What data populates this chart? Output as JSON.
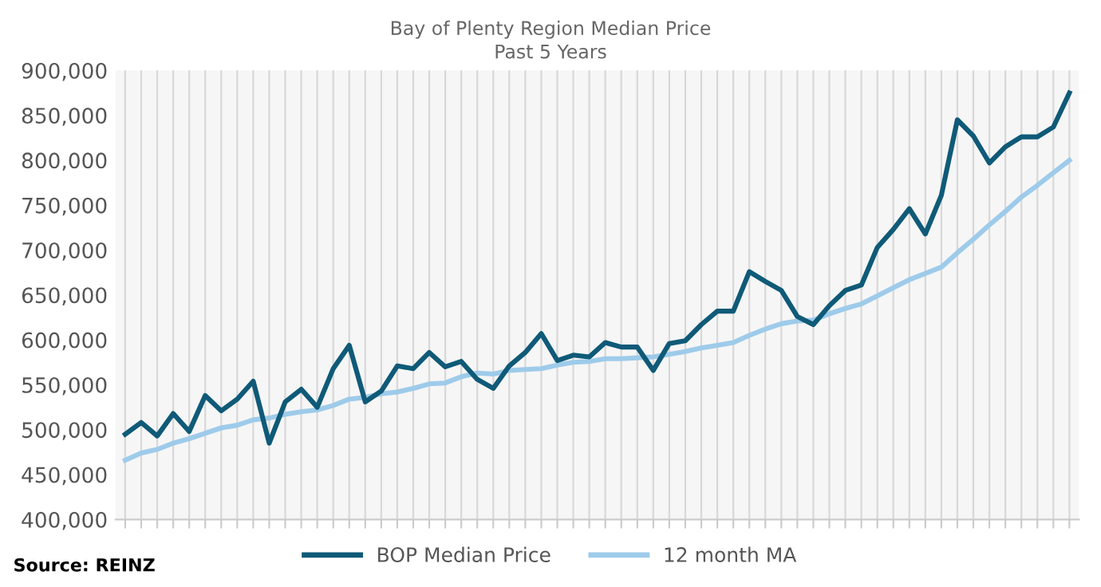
{
  "chart_data": {
    "type": "line",
    "title": "Bay of Plenty Region Median Price",
    "subtitle": "Past 5 Years",
    "categories": [
      null,
      null,
      null,
      null,
      null,
      null,
      null,
      null,
      null,
      null,
      null,
      null,
      null,
      null,
      null,
      null,
      null,
      null,
      null,
      null,
      null,
      null,
      null,
      null,
      null,
      null,
      null,
      null,
      null,
      null,
      null,
      null,
      null,
      null,
      null,
      null,
      null,
      null,
      null,
      null,
      null,
      null,
      null,
      null,
      null,
      null,
      null,
      null,
      null,
      null,
      null,
      null,
      null,
      null,
      null,
      null,
      null,
      null,
      null,
      null
    ],
    "series": [
      {
        "name": "BOP Median Price",
        "color": "#0f5a78",
        "values": [
          495000,
          508000,
          493000,
          518000,
          498000,
          538000,
          521000,
          534000,
          554000,
          485000,
          531000,
          545000,
          525000,
          568000,
          594000,
          531000,
          543000,
          571000,
          568000,
          586000,
          570000,
          576000,
          556000,
          546000,
          571000,
          586000,
          607000,
          577000,
          583000,
          581000,
          597000,
          592000,
          592000,
          566000,
          596000,
          599000,
          617000,
          632000,
          632000,
          676000,
          665000,
          655000,
          626000,
          617000,
          638000,
          655000,
          661000,
          703000,
          723000,
          746000,
          718000,
          761000,
          845000,
          827000,
          797000,
          815000,
          826000,
          826000,
          837000,
          875000
        ]
      },
      {
        "name": "12 month MA",
        "color": "#9ecbea",
        "values": [
          466000,
          474000,
          478000,
          485000,
          490000,
          496000,
          502000,
          505000,
          511000,
          513000,
          517000,
          520000,
          522000,
          527000,
          534000,
          536000,
          540000,
          542000,
          546000,
          551000,
          552000,
          559000,
          563000,
          562000,
          566000,
          567000,
          568000,
          572000,
          575000,
          576000,
          579000,
          579000,
          580000,
          581000,
          584000,
          587000,
          591000,
          594000,
          597000,
          605000,
          612000,
          618000,
          621000,
          622000,
          629000,
          635000,
          640000,
          649000,
          658000,
          667000,
          674000,
          681000,
          697000,
          712000,
          728000,
          743000,
          759000,
          772000,
          786000,
          800000
        ]
      }
    ],
    "ylim": [
      400000,
      900000
    ],
    "yticks": [
      {
        "value": 400000,
        "label": "400,000"
      },
      {
        "value": 450000,
        "label": "450,000"
      },
      {
        "value": 500000,
        "label": "500,000"
      },
      {
        "value": 550000,
        "label": "550,000"
      },
      {
        "value": 600000,
        "label": "600,000"
      },
      {
        "value": 650000,
        "label": "650,000"
      },
      {
        "value": 700000,
        "label": "700,000"
      },
      {
        "value": 750000,
        "label": "750,000"
      },
      {
        "value": 800000,
        "label": "800,000"
      },
      {
        "value": 850000,
        "label": "850,000"
      },
      {
        "value": 900000,
        "label": "900,000"
      }
    ],
    "grid": "x",
    "legend": "bottom",
    "marker": "none",
    "line_style": "solid",
    "annotations": [
      "Source: REINZ"
    ]
  }
}
